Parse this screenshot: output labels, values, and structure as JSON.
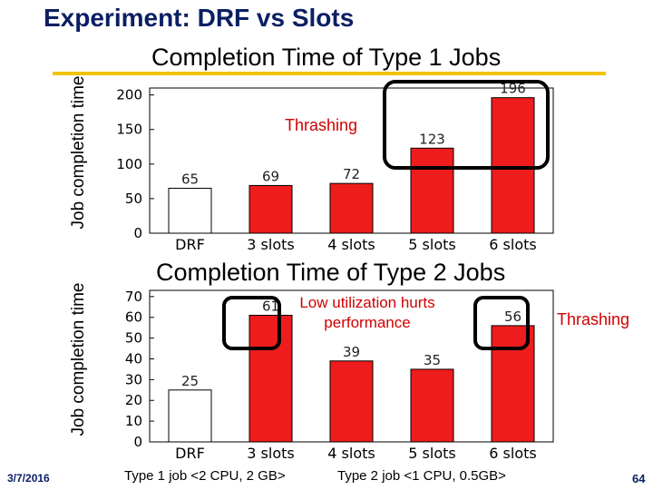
{
  "slide": {
    "title": "Experiment: DRF vs Slots",
    "date": "3/7/2016",
    "page_number": "64",
    "footer_left": "Type 1 job <2 CPU, 2 GB>",
    "footer_right": "Type 2 job <1 CPU, 0.5GB>"
  },
  "colors": {
    "bar": "#ee1c1c",
    "baseline_bar": "#ffffff",
    "title": "#0b1f63",
    "rule": "#f2c200",
    "annotation": "#d00000"
  },
  "chart_data": [
    {
      "type": "bar",
      "title": "Completion Time of Type 1 Jobs",
      "xlabel": "",
      "ylabel": "Job completion time",
      "categories": [
        "DRF",
        "3 slots",
        "4 slots",
        "5 slots",
        "6 slots"
      ],
      "values": [
        65,
        69,
        72,
        123,
        196
      ],
      "ylim": [
        0,
        210
      ],
      "yticks": [
        0,
        50,
        100,
        150,
        200
      ],
      "annotations": [
        {
          "text": "Thrashing",
          "target": [
            "5 slots",
            "6 slots"
          ]
        }
      ]
    },
    {
      "type": "bar",
      "title": "Completion Time of Type 2 Jobs",
      "xlabel": "",
      "ylabel": "Job completion time",
      "categories": [
        "DRF",
        "3 slots",
        "4 slots",
        "5 slots",
        "6 slots"
      ],
      "values": [
        25,
        61,
        39,
        35,
        56
      ],
      "ylim": [
        0,
        73
      ],
      "yticks": [
        0,
        10,
        20,
        30,
        40,
        50,
        60,
        70
      ],
      "annotations": [
        {
          "text": "Low utilization hurts performance",
          "target": [
            "3 slots"
          ]
        },
        {
          "text": "Thrashing",
          "target": [
            "6 slots"
          ]
        }
      ]
    }
  ]
}
